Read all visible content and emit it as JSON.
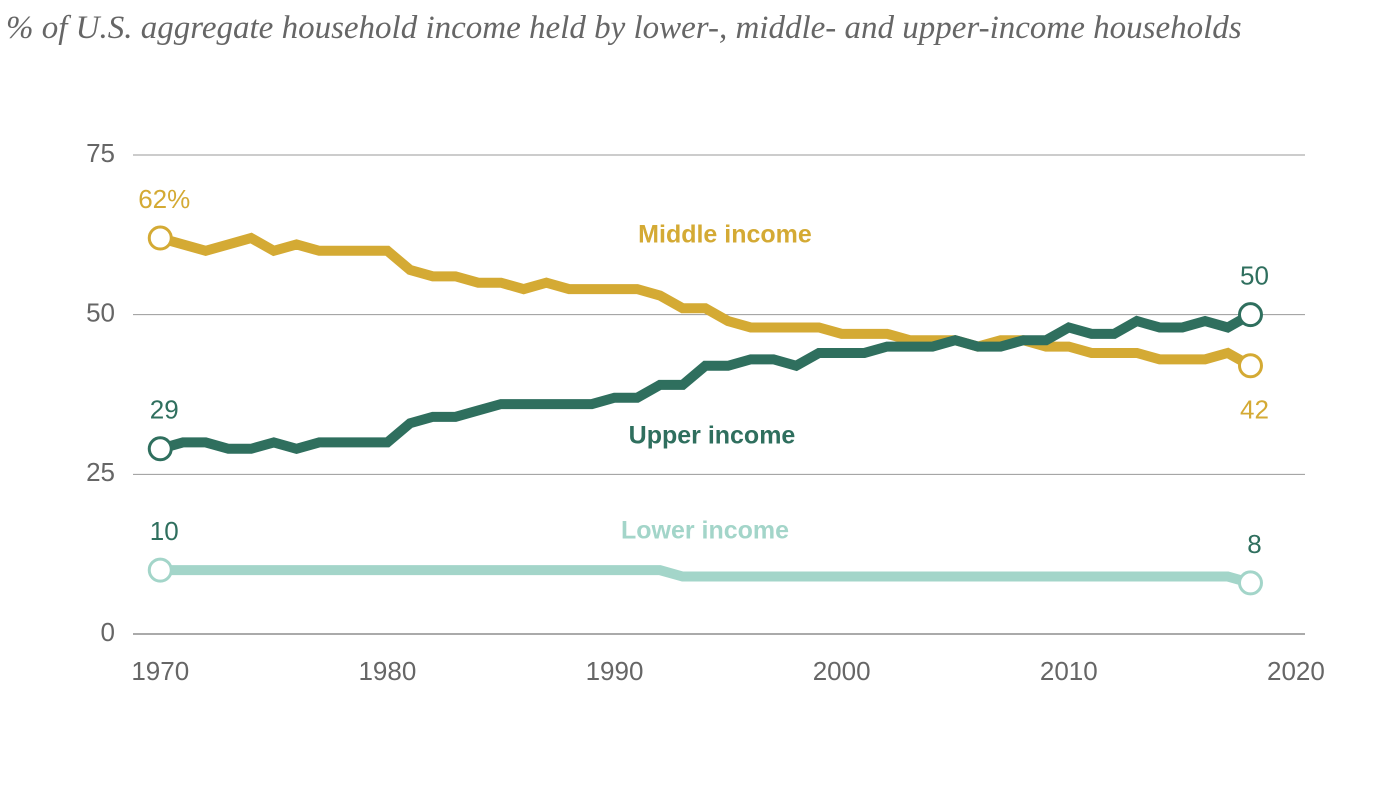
{
  "chart_data": {
    "type": "line",
    "title": "% of U.S. aggregate household income held by lower-, middle- and upper-income households",
    "x": [
      1970,
      1971,
      1972,
      1973,
      1974,
      1975,
      1976,
      1977,
      1978,
      1979,
      1980,
      1981,
      1982,
      1983,
      1984,
      1985,
      1986,
      1987,
      1988,
      1989,
      1990,
      1991,
      1992,
      1993,
      1994,
      1995,
      1996,
      1997,
      1998,
      1999,
      2000,
      2001,
      2002,
      2003,
      2004,
      2005,
      2006,
      2007,
      2008,
      2009,
      2010,
      2011,
      2012,
      2013,
      2014,
      2015,
      2016,
      2017,
      2018
    ],
    "xlim": [
      1968.8,
      2020.4
    ],
    "xticks": [
      1970,
      1980,
      1990,
      2000,
      2010,
      2020
    ],
    "ylim": [
      0,
      75
    ],
    "yticks": [
      0,
      25,
      50,
      75
    ],
    "grid": true,
    "series": [
      {
        "name": "Middle income",
        "color": "#d4aa34",
        "label_color": "#d4aa34",
        "values": [
          62,
          61,
          60,
          61,
          62,
          60,
          61,
          60,
          60,
          60,
          60,
          57,
          56,
          56,
          55,
          55,
          54,
          55,
          54,
          54,
          54,
          54,
          53,
          51,
          51,
          49,
          48,
          48,
          48,
          48,
          47,
          47,
          47,
          46,
          46,
          46,
          45,
          46,
          46,
          45,
          45,
          44,
          44,
          44,
          43,
          43,
          43,
          44,
          42
        ],
        "value_labels": [
          "62%",
          null,
          null,
          null,
          null,
          null,
          null,
          null,
          null,
          null,
          null,
          null,
          null,
          null,
          null,
          null,
          null,
          null,
          null,
          null,
          null,
          null,
          null,
          null,
          null,
          null,
          null,
          null,
          null,
          null,
          null,
          null,
          null,
          null,
          null,
          null,
          null,
          null,
          null,
          null,
          null,
          null,
          null,
          null,
          null,
          null,
          null,
          null,
          "42"
        ]
      },
      {
        "name": "Upper income",
        "color": "#2f6f5e",
        "label_color": "#2f6f5e",
        "values": [
          29,
          30,
          30,
          29,
          29,
          30,
          29,
          30,
          30,
          30,
          30,
          33,
          34,
          34,
          35,
          36,
          36,
          36,
          36,
          36,
          37,
          37,
          39,
          39,
          42,
          42,
          43,
          43,
          42,
          44,
          44,
          44,
          45,
          45,
          45,
          46,
          45,
          45,
          46,
          46,
          48,
          47,
          47,
          49,
          48,
          48,
          49,
          48,
          50
        ],
        "value_labels": [
          "29",
          null,
          null,
          null,
          null,
          null,
          null,
          null,
          null,
          null,
          null,
          null,
          null,
          null,
          null,
          null,
          null,
          null,
          null,
          null,
          null,
          null,
          null,
          null,
          null,
          null,
          null,
          null,
          null,
          null,
          null,
          null,
          null,
          null,
          null,
          null,
          null,
          null,
          null,
          null,
          null,
          null,
          null,
          null,
          null,
          null,
          null,
          null,
          "50"
        ]
      },
      {
        "name": "Lower income",
        "color": "#a3d5c9",
        "label_color": "#2f6f5e",
        "values": [
          10,
          10,
          10,
          10,
          10,
          10,
          10,
          10,
          10,
          10,
          10,
          10,
          10,
          10,
          10,
          10,
          10,
          10,
          10,
          10,
          10,
          10,
          10,
          9,
          9,
          9,
          9,
          9,
          9,
          9,
          9,
          9,
          9,
          9,
          9,
          9,
          9,
          9,
          9,
          9,
          9,
          9,
          9,
          9,
          9,
          9,
          9,
          9,
          8
        ],
        "value_labels": [
          "10",
          null,
          null,
          null,
          null,
          null,
          null,
          null,
          null,
          null,
          null,
          null,
          null,
          null,
          null,
          null,
          null,
          null,
          null,
          null,
          null,
          null,
          null,
          null,
          null,
          null,
          null,
          null,
          null,
          null,
          null,
          null,
          null,
          null,
          null,
          null,
          null,
          null,
          null,
          null,
          null,
          null,
          null,
          null,
          null,
          null,
          null,
          null,
          "8"
        ]
      }
    ]
  }
}
